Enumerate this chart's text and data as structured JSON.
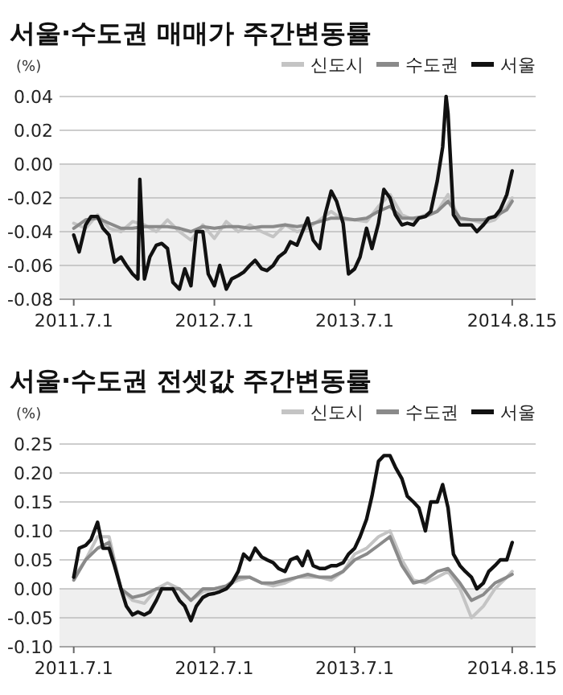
{
  "chart_data": [
    {
      "type": "line",
      "title": "서울·수도권 매매가 주간변동률",
      "ylabel": "(%)",
      "xlim": [
        "2011-05-25",
        "2014-10-15"
      ],
      "ylim": [
        -0.08,
        0.04
      ],
      "yticks": [
        {
          "value": 0.04,
          "label": "0.04"
        },
        {
          "value": 0.02,
          "label": "0.02"
        },
        {
          "value": 0,
          "label": "0.00"
        },
        {
          "value": -0.02,
          "label": "-0.02"
        },
        {
          "value": -0.04,
          "label": "-0.04"
        },
        {
          "value": -0.06,
          "label": "-0.06"
        },
        {
          "value": -0.08,
          "label": "-0.08"
        }
      ],
      "xticks": [
        {
          "value": "2011-07-01",
          "label": "2011.7.1"
        },
        {
          "value": "2012-07-01",
          "label": "2012.7.1"
        },
        {
          "value": "2013-07-01",
          "label": "2013.7.1"
        },
        {
          "value": "2014-08-15",
          "label": "2014.8.15"
        }
      ],
      "grid": "y",
      "legend": "top right",
      "bands": [
        {
          "axis": "y",
          "from": -0.08,
          "to": 0,
          "color": "#efefef"
        }
      ],
      "series": [
        {
          "name": "신도시",
          "color": "#c4c4c4",
          "x": [
            "2011-07-01",
            "2011-08-01",
            "2011-09-01",
            "2011-10-01",
            "2011-11-01",
            "2011-12-01",
            "2012-01-01",
            "2012-02-01",
            "2012-03-01",
            "2012-04-01",
            "2012-05-01",
            "2012-06-01",
            "2012-07-01",
            "2012-08-01",
            "2012-09-01",
            "2012-10-01",
            "2012-11-01",
            "2012-12-01",
            "2013-01-01",
            "2013-02-01",
            "2013-03-01",
            "2013-04-01",
            "2013-05-01",
            "2013-06-01",
            "2013-07-01",
            "2013-08-01",
            "2013-09-01",
            "2013-10-01",
            "2013-11-01",
            "2013-12-01",
            "2014-01-01",
            "2014-02-01",
            "2014-03-01",
            "2014-04-01",
            "2014-05-01",
            "2014-06-01",
            "2014-07-01",
            "2014-08-01",
            "2014-08-15"
          ],
          "values": [
            -0.035,
            -0.038,
            -0.03,
            -0.038,
            -0.04,
            -0.034,
            -0.036,
            -0.04,
            -0.033,
            -0.04,
            -0.045,
            -0.036,
            -0.044,
            -0.034,
            -0.04,
            -0.036,
            -0.04,
            -0.043,
            -0.036,
            -0.04,
            -0.038,
            -0.033,
            -0.028,
            -0.033,
            -0.033,
            -0.034,
            -0.025,
            -0.018,
            -0.03,
            -0.033,
            -0.03,
            -0.028,
            -0.018,
            -0.033,
            -0.033,
            -0.035,
            -0.033,
            -0.025,
            -0.02
          ]
        },
        {
          "name": "수도권",
          "color": "#8a8a8a",
          "x": [
            "2011-07-01",
            "2011-08-01",
            "2011-09-01",
            "2011-10-01",
            "2011-11-01",
            "2011-12-01",
            "2012-01-01",
            "2012-02-01",
            "2012-03-01",
            "2012-04-01",
            "2012-05-01",
            "2012-06-01",
            "2012-07-01",
            "2012-08-01",
            "2012-09-01",
            "2012-10-01",
            "2012-11-01",
            "2012-12-01",
            "2013-01-01",
            "2013-02-01",
            "2013-03-01",
            "2013-04-01",
            "2013-05-01",
            "2013-06-01",
            "2013-07-01",
            "2013-08-01",
            "2013-09-01",
            "2013-10-01",
            "2013-11-01",
            "2013-12-01",
            "2014-01-01",
            "2014-02-01",
            "2014-03-01",
            "2014-04-01",
            "2014-05-01",
            "2014-06-01",
            "2014-07-01",
            "2014-08-01",
            "2014-08-15"
          ],
          "values": [
            -0.038,
            -0.033,
            -0.032,
            -0.035,
            -0.038,
            -0.038,
            -0.037,
            -0.037,
            -0.037,
            -0.038,
            -0.04,
            -0.037,
            -0.038,
            -0.037,
            -0.037,
            -0.038,
            -0.037,
            -0.037,
            -0.036,
            -0.037,
            -0.036,
            -0.034,
            -0.032,
            -0.032,
            -0.033,
            -0.032,
            -0.028,
            -0.025,
            -0.032,
            -0.032,
            -0.031,
            -0.028,
            -0.022,
            -0.032,
            -0.033,
            -0.033,
            -0.031,
            -0.027,
            -0.022
          ]
        },
        {
          "name": "서울",
          "color": "#111111",
          "x": [
            "2011-07-01",
            "2011-07-15",
            "2011-08-01",
            "2011-08-15",
            "2011-09-01",
            "2011-09-15",
            "2011-10-01",
            "2011-10-15",
            "2011-11-01",
            "2011-11-15",
            "2011-12-01",
            "2011-12-15",
            "2011-12-20",
            "2012-01-01",
            "2012-01-15",
            "2012-02-01",
            "2012-02-15",
            "2012-03-01",
            "2012-03-15",
            "2012-04-01",
            "2012-04-15",
            "2012-05-01",
            "2012-05-15",
            "2012-06-01",
            "2012-06-15",
            "2012-07-01",
            "2012-07-15",
            "2012-08-01",
            "2012-08-15",
            "2012-09-01",
            "2012-09-15",
            "2012-10-01",
            "2012-10-15",
            "2012-11-01",
            "2012-11-15",
            "2012-12-01",
            "2012-12-15",
            "2013-01-01",
            "2013-01-15",
            "2013-02-01",
            "2013-02-15",
            "2013-03-01",
            "2013-03-15",
            "2013-04-01",
            "2013-04-15",
            "2013-05-01",
            "2013-05-15",
            "2013-06-01",
            "2013-06-15",
            "2013-07-01",
            "2013-07-15",
            "2013-08-01",
            "2013-08-15",
            "2013-09-01",
            "2013-09-15",
            "2013-10-01",
            "2013-10-15",
            "2013-11-01",
            "2013-11-15",
            "2013-12-01",
            "2013-12-15",
            "2014-01-01",
            "2014-01-15",
            "2014-02-01",
            "2014-02-15",
            "2014-02-24",
            "2014-03-01",
            "2014-03-15",
            "2014-04-01",
            "2014-04-15",
            "2014-05-01",
            "2014-05-15",
            "2014-06-01",
            "2014-06-15",
            "2014-07-01",
            "2014-07-15",
            "2014-08-01",
            "2014-08-15"
          ],
          "values": [
            -0.042,
            -0.052,
            -0.036,
            -0.031,
            -0.031,
            -0.038,
            -0.042,
            -0.058,
            -0.055,
            -0.06,
            -0.065,
            -0.068,
            -0.009,
            -0.068,
            -0.055,
            -0.048,
            -0.047,
            -0.05,
            -0.07,
            -0.074,
            -0.062,
            -0.072,
            -0.04,
            -0.04,
            -0.065,
            -0.072,
            -0.06,
            -0.074,
            -0.068,
            -0.066,
            -0.064,
            -0.06,
            -0.057,
            -0.062,
            -0.063,
            -0.06,
            -0.055,
            -0.052,
            -0.046,
            -0.048,
            -0.04,
            -0.032,
            -0.045,
            -0.05,
            -0.03,
            -0.016,
            -0.022,
            -0.035,
            -0.065,
            -0.062,
            -0.055,
            -0.038,
            -0.05,
            -0.035,
            -0.015,
            -0.02,
            -0.03,
            -0.036,
            -0.035,
            -0.036,
            -0.032,
            -0.031,
            -0.028,
            -0.01,
            0.01,
            0.04,
            0.03,
            -0.03,
            -0.036,
            -0.036,
            -0.036,
            -0.04,
            -0.036,
            -0.032,
            -0.031,
            -0.027,
            -0.018,
            -0.004
          ]
        }
      ]
    },
    {
      "type": "line",
      "title": "서울·수도권 전셋값 주간변동률",
      "ylabel": "(%)",
      "xlim": [
        "2011-05-25",
        "2014-10-15"
      ],
      "ylim": [
        -0.1,
        0.25
      ],
      "yticks": [
        {
          "value": 0.25,
          "label": "0.25"
        },
        {
          "value": 0.2,
          "label": "0.20"
        },
        {
          "value": 0.15,
          "label": "0.15"
        },
        {
          "value": 0.1,
          "label": "0.10"
        },
        {
          "value": 0.05,
          "label": "0.05"
        },
        {
          "value": 0,
          "label": "0.00"
        },
        {
          "value": -0.05,
          "label": "-0.05"
        },
        {
          "value": -0.1,
          "label": "-0.10"
        }
      ],
      "xticks": [
        {
          "value": "2011-07-01",
          "label": "2011.7.1"
        },
        {
          "value": "2012-07-01",
          "label": "2012.7.1"
        },
        {
          "value": "2013-07-01",
          "label": "2013.7.1"
        },
        {
          "value": "2014-08-15",
          "label": "2014.8.15"
        }
      ],
      "grid": "y",
      "legend": "top right",
      "bands": [
        {
          "axis": "y",
          "from": -0.1,
          "to": 0,
          "color": "#efefef"
        }
      ],
      "series": [
        {
          "name": "신도시",
          "color": "#c4c4c4",
          "x": [
            "2011-07-01",
            "2011-08-01",
            "2011-09-01",
            "2011-10-01",
            "2011-11-01",
            "2011-12-01",
            "2012-01-01",
            "2012-02-01",
            "2012-03-01",
            "2012-04-01",
            "2012-05-01",
            "2012-06-01",
            "2012-07-01",
            "2012-08-01",
            "2012-09-01",
            "2012-10-01",
            "2012-11-01",
            "2012-12-01",
            "2013-01-01",
            "2013-02-01",
            "2013-03-01",
            "2013-04-01",
            "2013-05-01",
            "2013-06-01",
            "2013-07-01",
            "2013-08-01",
            "2013-09-01",
            "2013-10-01",
            "2013-11-01",
            "2013-12-01",
            "2014-01-01",
            "2014-02-01",
            "2014-03-01",
            "2014-04-01",
            "2014-05-01",
            "2014-06-01",
            "2014-07-01",
            "2014-08-01",
            "2014-08-15"
          ],
          "values": [
            0.02,
            0.05,
            0.09,
            0.09,
            0,
            -0.02,
            -0.025,
            0,
            0.01,
            0,
            -0.02,
            -0.005,
            0,
            0.005,
            0.015,
            0.02,
            0.01,
            0.005,
            0.01,
            0.02,
            0.02,
            0.02,
            0.015,
            0.03,
            0.06,
            0.07,
            0.09,
            0.1,
            0.05,
            0.015,
            0.01,
            0.02,
            0.03,
            0,
            -0.05,
            -0.03,
            0,
            0.02,
            0.03
          ]
        },
        {
          "name": "수도권",
          "color": "#8a8a8a",
          "x": [
            "2011-07-01",
            "2011-08-01",
            "2011-09-01",
            "2011-10-01",
            "2011-11-01",
            "2011-12-01",
            "2012-01-01",
            "2012-02-01",
            "2012-03-01",
            "2012-04-01",
            "2012-05-01",
            "2012-06-01",
            "2012-07-01",
            "2012-08-01",
            "2012-09-01",
            "2012-10-01",
            "2012-11-01",
            "2012-12-01",
            "2013-01-01",
            "2013-02-01",
            "2013-03-01",
            "2013-04-01",
            "2013-05-01",
            "2013-06-01",
            "2013-07-01",
            "2013-08-01",
            "2013-09-01",
            "2013-10-01",
            "2013-11-01",
            "2013-12-01",
            "2014-01-01",
            "2014-02-01",
            "2014-03-01",
            "2014-04-01",
            "2014-05-01",
            "2014-06-01",
            "2014-07-01",
            "2014-08-01",
            "2014-08-15"
          ],
          "values": [
            0.015,
            0.05,
            0.07,
            0.08,
            0,
            -0.015,
            -0.01,
            0,
            0,
            0,
            -0.02,
            0,
            0,
            0.005,
            0.02,
            0.02,
            0.01,
            0.01,
            0.015,
            0.02,
            0.025,
            0.02,
            0.02,
            0.03,
            0.05,
            0.06,
            0.075,
            0.09,
            0.04,
            0.01,
            0.015,
            0.03,
            0.035,
            0.01,
            -0.02,
            -0.01,
            0.01,
            0.02,
            0.025
          ]
        },
        {
          "name": "서울",
          "color": "#111111",
          "x": [
            "2011-07-01",
            "2011-07-15",
            "2011-08-01",
            "2011-08-15",
            "2011-09-01",
            "2011-09-15",
            "2011-10-01",
            "2011-10-15",
            "2011-11-01",
            "2011-11-15",
            "2011-12-01",
            "2011-12-15",
            "2012-01-01",
            "2012-01-15",
            "2012-02-01",
            "2012-02-15",
            "2012-03-01",
            "2012-03-15",
            "2012-04-01",
            "2012-04-15",
            "2012-05-01",
            "2012-05-15",
            "2012-06-01",
            "2012-06-15",
            "2012-07-01",
            "2012-07-15",
            "2012-08-01",
            "2012-08-15",
            "2012-09-01",
            "2012-09-15",
            "2012-10-01",
            "2012-10-15",
            "2012-11-01",
            "2012-11-15",
            "2012-12-01",
            "2012-12-15",
            "2013-01-01",
            "2013-01-15",
            "2013-02-01",
            "2013-02-15",
            "2013-03-01",
            "2013-03-15",
            "2013-04-01",
            "2013-04-15",
            "2013-05-01",
            "2013-05-15",
            "2013-06-01",
            "2013-06-15",
            "2013-07-01",
            "2013-07-15",
            "2013-08-01",
            "2013-08-15",
            "2013-09-01",
            "2013-09-15",
            "2013-10-01",
            "2013-10-15",
            "2013-11-01",
            "2013-11-15",
            "2013-12-01",
            "2013-12-15",
            "2014-01-01",
            "2014-01-15",
            "2014-02-01",
            "2014-02-15",
            "2014-03-01",
            "2014-03-15",
            "2014-04-01",
            "2014-04-15",
            "2014-05-01",
            "2014-05-15",
            "2014-06-01",
            "2014-06-15",
            "2014-07-01",
            "2014-07-15",
            "2014-08-01",
            "2014-08-15"
          ],
          "values": [
            0.02,
            0.07,
            0.075,
            0.085,
            0.115,
            0.07,
            0.07,
            0.04,
            0,
            -0.03,
            -0.045,
            -0.04,
            -0.045,
            -0.04,
            -0.02,
            0,
            0,
            0,
            -0.02,
            -0.03,
            -0.055,
            -0.03,
            -0.015,
            -0.01,
            -0.008,
            -0.005,
            0,
            0.01,
            0.03,
            0.06,
            0.05,
            0.07,
            0.055,
            0.05,
            0.045,
            0.035,
            0.03,
            0.05,
            0.055,
            0.04,
            0.065,
            0.04,
            0.035,
            0.035,
            0.04,
            0.04,
            0.045,
            0.06,
            0.07,
            0.09,
            0.12,
            0.16,
            0.22,
            0.23,
            0.23,
            0.21,
            0.19,
            0.16,
            0.15,
            0.14,
            0.1,
            0.15,
            0.15,
            0.18,
            0.14,
            0.06,
            0.04,
            0.03,
            0.02,
            0,
            0.01,
            0.03,
            0.04,
            0.05,
            0.05,
            0.08
          ]
        }
      ]
    }
  ]
}
